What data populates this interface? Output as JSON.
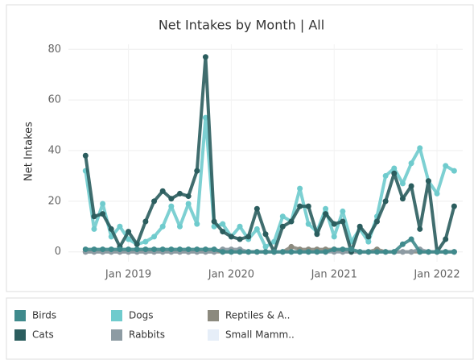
{
  "chart_data": {
    "type": "line",
    "title": "Net Intakes by Month | All",
    "ylabel": "Net Intakes",
    "x": [
      "2018-08",
      "2018-09",
      "2018-10",
      "2018-11",
      "2018-12",
      "2019-01",
      "2019-02",
      "2019-03",
      "2019-04",
      "2019-05",
      "2019-06",
      "2019-07",
      "2019-08",
      "2019-09",
      "2019-10",
      "2019-11",
      "2019-12",
      "2020-01",
      "2020-02",
      "2020-03",
      "2020-04",
      "2020-05",
      "2020-06",
      "2020-07",
      "2020-08",
      "2020-09",
      "2020-10",
      "2020-11",
      "2020-12",
      "2021-01",
      "2021-02",
      "2021-03",
      "2021-04",
      "2021-05",
      "2021-06",
      "2021-07",
      "2021-08",
      "2021-09",
      "2021-10",
      "2021-11",
      "2021-12",
      "2022-01",
      "2022-02",
      "2022-03"
    ],
    "xlim": [
      "2018-06",
      "2022-04"
    ],
    "xticks": [
      {
        "value": "2019-01",
        "label": "Jan 2019"
      },
      {
        "value": "2020-01",
        "label": "Jan 2020"
      },
      {
        "value": "2021-01",
        "label": "Jan 2021"
      },
      {
        "value": "2022-01",
        "label": "Jan 2022"
      }
    ],
    "ylim": [
      -2,
      82
    ],
    "yticks": [
      0,
      20,
      40,
      60,
      80
    ],
    "grid": true,
    "series": [
      {
        "name": "Birds",
        "color": "#3f8a8c",
        "values": [
          1,
          1,
          1,
          1,
          1,
          1,
          1,
          1,
          1,
          1,
          1,
          1,
          1,
          1,
          1,
          1,
          0,
          0,
          0,
          0,
          0,
          0,
          0,
          0,
          0,
          0,
          0,
          0,
          0,
          1,
          1,
          1,
          0,
          0,
          0,
          0,
          0,
          3,
          5,
          0,
          0,
          0,
          0,
          0
        ]
      },
      {
        "name": "Cats",
        "color": "#2b5d5e",
        "values": [
          38,
          14,
          15,
          9,
          2,
          8,
          3,
          12,
          20,
          24,
          21,
          23,
          22,
          32,
          77,
          12,
          8,
          6,
          5,
          6,
          17,
          7,
          0,
          10,
          12,
          18,
          18,
          7,
          15,
          11,
          12,
          0,
          10,
          6,
          12,
          20,
          31,
          21,
          26,
          9,
          28,
          0,
          5,
          18
        ]
      },
      {
        "name": "Dogs",
        "color": "#6fcbcd",
        "values": [
          32,
          9,
          19,
          6,
          10,
          5,
          3,
          4,
          6,
          10,
          18,
          10,
          19,
          11,
          53,
          10,
          11,
          6,
          10,
          5,
          9,
          2,
          4,
          14,
          12,
          25,
          11,
          8,
          17,
          6,
          16,
          4,
          9,
          4,
          14,
          30,
          33,
          27,
          35,
          41,
          28,
          23,
          34,
          32
        ]
      },
      {
        "name": "Rabbits",
        "color": "#8d9ba3",
        "values": [
          0,
          0,
          0,
          0,
          0,
          0,
          0,
          0,
          0,
          0,
          0,
          0,
          0,
          0,
          0,
          0,
          1,
          1,
          1,
          0,
          0,
          0,
          0,
          0,
          0,
          0,
          0,
          0,
          0,
          0,
          0,
          0,
          0,
          0,
          0,
          0,
          0,
          0,
          0,
          1,
          0,
          0,
          0,
          0
        ]
      },
      {
        "name": "Reptiles & A..",
        "color": "#8c8a7e",
        "values": [
          0,
          0,
          0,
          0,
          0,
          0,
          0,
          0,
          0,
          0,
          0,
          0,
          0,
          0,
          0,
          0,
          0,
          0,
          0,
          0,
          0,
          0,
          0,
          0,
          2,
          1,
          1,
          1,
          1,
          1,
          0,
          0,
          0,
          0,
          1,
          0,
          0,
          0,
          0,
          0,
          0,
          0,
          0,
          0
        ]
      },
      {
        "name": "Small Mamm..",
        "color": "#e6eef8",
        "values": [
          0,
          0,
          0,
          0,
          0,
          0,
          0,
          0,
          0,
          0,
          0,
          0,
          0,
          0,
          0,
          0,
          0,
          0,
          0,
          0,
          0,
          0,
          0,
          0,
          0,
          0,
          0,
          0,
          0,
          0,
          0,
          0,
          0,
          0,
          0,
          0,
          0,
          0,
          0,
          0,
          0,
          0,
          0,
          0
        ]
      }
    ]
  }
}
